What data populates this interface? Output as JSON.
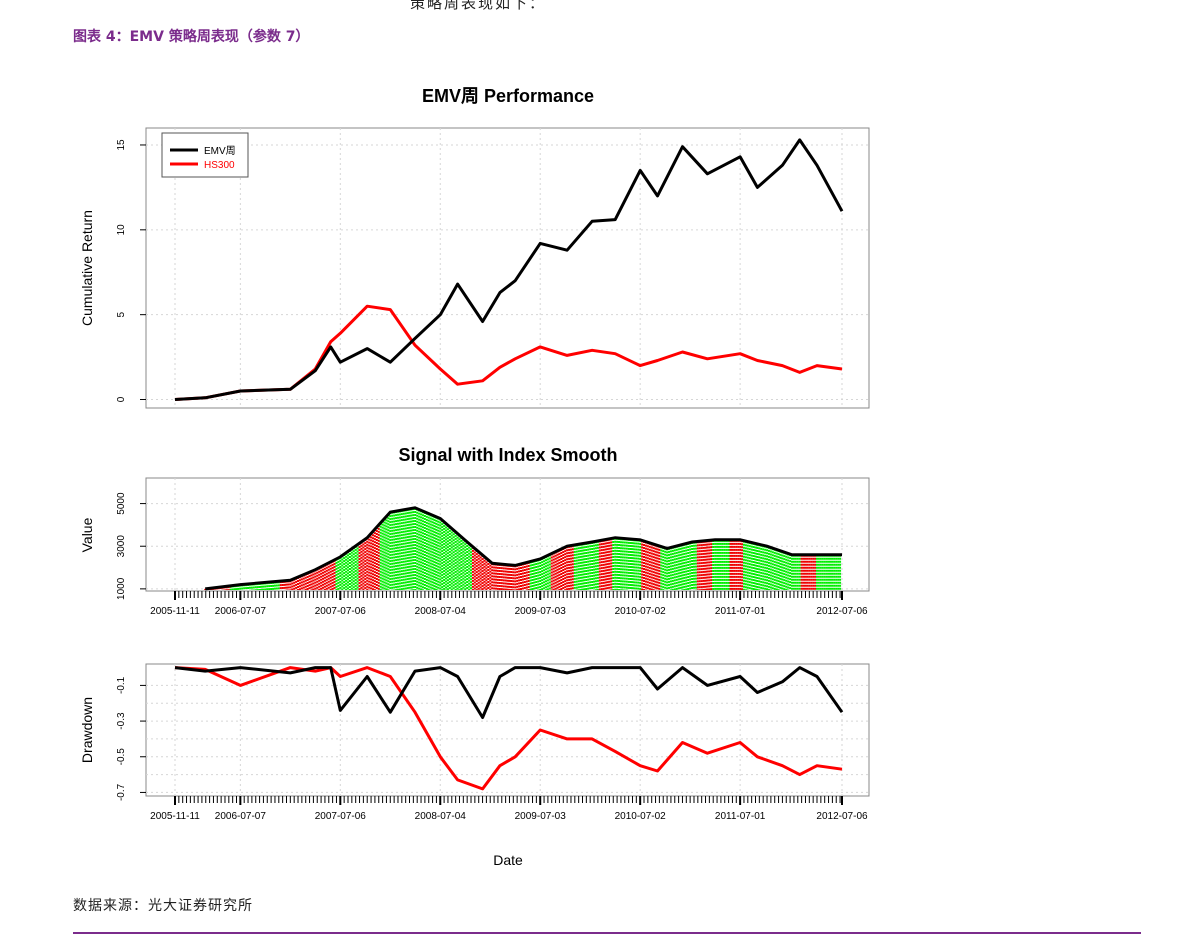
{
  "report": {
    "top_text": "策略周表现如下：",
    "figure_caption": "图表 4：EMV 策略周表现（参数 7）",
    "source": "数据来源：光大证券研究所"
  },
  "colors": {
    "strategy": "#000000",
    "index": "#ff0000",
    "long": "#00ee00",
    "short": "#ee0000",
    "caption": "#7b2c8c"
  },
  "chart_data": [
    {
      "type": "line",
      "title": "EMV周 Performance",
      "ylabel": "Cumulative Return",
      "ylim": [
        -0.5,
        16
      ],
      "yticks": [
        0,
        5,
        10,
        15
      ],
      "grid": true,
      "legend_placement": "top-left",
      "x_range": [
        "2005-11-11",
        "2012-07-06"
      ],
      "series": [
        {
          "name": "EMV周",
          "color": "#000000",
          "x": [
            "2005-11-11",
            "2006-03-01",
            "2006-07-07",
            "2007-01-05",
            "2007-04-06",
            "2007-06-01",
            "2007-07-06",
            "2007-10-12",
            "2008-01-04",
            "2008-04-03",
            "2008-07-04",
            "2008-09-05",
            "2008-12-05",
            "2009-02-06",
            "2009-04-03",
            "2009-07-03",
            "2009-10-09",
            "2010-01-08",
            "2010-04-02",
            "2010-07-02",
            "2010-09-03",
            "2010-12-03",
            "2011-03-04",
            "2011-07-01",
            "2011-09-02",
            "2011-12-02",
            "2012-02-03",
            "2012-04-06",
            "2012-07-06"
          ],
          "y": [
            0.0,
            0.1,
            0.5,
            0.6,
            1.7,
            3.1,
            2.2,
            3.0,
            2.2,
            3.6,
            5.0,
            6.8,
            4.6,
            6.3,
            7.0,
            9.2,
            8.8,
            10.5,
            10.6,
            13.5,
            12.0,
            14.9,
            13.3,
            14.3,
            12.5,
            13.8,
            15.3,
            13.8,
            11.1
          ]
        },
        {
          "name": "HS300",
          "color": "#ff0000",
          "x": [
            "2005-11-11",
            "2006-03-01",
            "2006-07-07",
            "2007-01-05",
            "2007-04-06",
            "2007-06-01",
            "2007-07-06",
            "2007-10-12",
            "2008-01-04",
            "2008-04-03",
            "2008-07-04",
            "2008-09-05",
            "2008-12-05",
            "2009-02-06",
            "2009-04-03",
            "2009-07-03",
            "2009-10-09",
            "2010-01-08",
            "2010-04-02",
            "2010-07-02",
            "2010-09-03",
            "2010-12-03",
            "2011-03-04",
            "2011-07-01",
            "2011-09-02",
            "2011-12-02",
            "2012-02-03",
            "2012-04-06",
            "2012-07-06"
          ],
          "y": [
            0.0,
            0.1,
            0.5,
            0.6,
            1.8,
            3.4,
            3.9,
            5.5,
            5.3,
            3.2,
            1.8,
            0.9,
            1.1,
            1.9,
            2.4,
            3.1,
            2.6,
            2.9,
            2.7,
            2.0,
            2.3,
            2.8,
            2.4,
            2.7,
            2.3,
            2.0,
            1.6,
            2.0,
            1.8
          ]
        }
      ]
    },
    {
      "type": "area",
      "title": "Signal with Index Smooth",
      "ylabel": "Value",
      "ylim": [
        900,
        6200
      ],
      "yticks": [
        1000,
        3000,
        5000
      ],
      "grid": true,
      "x_range": [
        "2005-11-11",
        "2012-07-06"
      ],
      "x_tick_labels": [
        "2005-11-11",
        "2006-07-07",
        "2007-07-06",
        "2008-07-04",
        "2009-07-03",
        "2010-07-02",
        "2011-07-01",
        "2012-07-06"
      ],
      "smooth_index": {
        "x": [
          "2006-03-01",
          "2006-07-07",
          "2007-01-05",
          "2007-04-06",
          "2007-07-06",
          "2007-10-12",
          "2008-01-04",
          "2008-04-03",
          "2008-07-04",
          "2008-10-10",
          "2009-01-09",
          "2009-04-03",
          "2009-07-03",
          "2009-10-09",
          "2010-01-08",
          "2010-04-02",
          "2010-07-02",
          "2010-10-08",
          "2011-01-07",
          "2011-04-01",
          "2011-07-01",
          "2011-10-07",
          "2012-01-06",
          "2012-04-06",
          "2012-07-06"
        ],
        "y": [
          1000,
          1200,
          1400,
          1900,
          2500,
          3400,
          4600,
          4800,
          4300,
          3200,
          2200,
          2100,
          2400,
          3000,
          3200,
          3400,
          3300,
          2900,
          3200,
          3300,
          3300,
          3000,
          2600,
          2600,
          2600
        ]
      },
      "signal_periods": [
        {
          "start": "2006-03-01",
          "end": "2006-06-02",
          "signal": "short"
        },
        {
          "start": "2006-06-02",
          "end": "2006-12-01",
          "signal": "long"
        },
        {
          "start": "2006-12-01",
          "end": "2007-06-22",
          "signal": "short"
        },
        {
          "start": "2007-06-22",
          "end": "2007-09-14",
          "signal": "long"
        },
        {
          "start": "2007-09-14",
          "end": "2007-11-30",
          "signal": "short"
        },
        {
          "start": "2007-11-30",
          "end": "2008-10-31",
          "signal": "long"
        },
        {
          "start": "2008-10-31",
          "end": "2009-05-29",
          "signal": "short"
        },
        {
          "start": "2009-05-29",
          "end": "2009-08-14",
          "signal": "long"
        },
        {
          "start": "2009-08-14",
          "end": "2009-11-06",
          "signal": "short"
        },
        {
          "start": "2009-11-06",
          "end": "2010-02-05",
          "signal": "long"
        },
        {
          "start": "2010-02-05",
          "end": "2010-03-26",
          "signal": "short"
        },
        {
          "start": "2010-03-26",
          "end": "2010-07-09",
          "signal": "long"
        },
        {
          "start": "2010-07-09",
          "end": "2010-09-17",
          "signal": "short"
        },
        {
          "start": "2010-09-17",
          "end": "2011-01-28",
          "signal": "long"
        },
        {
          "start": "2011-01-28",
          "end": "2011-03-25",
          "signal": "short"
        },
        {
          "start": "2011-03-25",
          "end": "2011-05-27",
          "signal": "long"
        },
        {
          "start": "2011-05-27",
          "end": "2011-07-15",
          "signal": "short"
        },
        {
          "start": "2011-07-15",
          "end": "2012-02-10",
          "signal": "long"
        },
        {
          "start": "2012-02-10",
          "end": "2012-04-06",
          "signal": "short"
        },
        {
          "start": "2012-04-06",
          "end": "2012-07-06",
          "signal": "long"
        }
      ]
    },
    {
      "type": "line",
      "ylabel": "Drawdown",
      "xlabel": "Date",
      "ylim": [
        -0.72,
        0.02
      ],
      "yticks": [
        -0.1,
        -0.3,
        -0.5,
        -0.7
      ],
      "grid": true,
      "x_range": [
        "2005-11-11",
        "2012-07-06"
      ],
      "x_tick_labels": [
        "2005-11-11",
        "2006-07-07",
        "2007-07-06",
        "2008-07-04",
        "2009-07-03",
        "2010-07-02",
        "2011-07-01",
        "2012-07-06"
      ],
      "series": [
        {
          "name": "EMV周",
          "color": "#000000",
          "x": [
            "2005-11-11",
            "2006-03-01",
            "2006-07-07",
            "2007-01-05",
            "2007-04-06",
            "2007-06-01",
            "2007-07-06",
            "2007-10-12",
            "2008-01-04",
            "2008-04-03",
            "2008-07-04",
            "2008-09-05",
            "2008-12-05",
            "2009-02-06",
            "2009-04-03",
            "2009-07-03",
            "2009-10-09",
            "2010-01-08",
            "2010-04-02",
            "2010-07-02",
            "2010-09-03",
            "2010-12-03",
            "2011-03-04",
            "2011-07-01",
            "2011-09-02",
            "2011-12-02",
            "2012-02-03",
            "2012-04-06",
            "2012-07-06"
          ],
          "y": [
            0.0,
            -0.02,
            0.0,
            -0.03,
            0.0,
            0.0,
            -0.24,
            -0.05,
            -0.25,
            -0.02,
            0.0,
            -0.05,
            -0.28,
            -0.05,
            0.0,
            0.0,
            -0.03,
            0.0,
            0.0,
            0.0,
            -0.12,
            0.0,
            -0.1,
            -0.05,
            -0.14,
            -0.08,
            0.0,
            -0.05,
            -0.25
          ]
        },
        {
          "name": "HS300",
          "color": "#ff0000",
          "x": [
            "2005-11-11",
            "2006-03-01",
            "2006-07-07",
            "2007-01-05",
            "2007-04-06",
            "2007-06-01",
            "2007-07-06",
            "2007-10-12",
            "2008-01-04",
            "2008-04-03",
            "2008-07-04",
            "2008-09-05",
            "2008-12-05",
            "2009-02-06",
            "2009-04-03",
            "2009-07-03",
            "2009-10-09",
            "2010-01-08",
            "2010-04-02",
            "2010-07-02",
            "2010-09-03",
            "2010-12-03",
            "2011-03-04",
            "2011-07-01",
            "2011-09-02",
            "2011-12-02",
            "2012-02-03",
            "2012-04-06",
            "2012-07-06"
          ],
          "y": [
            0.0,
            -0.01,
            -0.1,
            0.0,
            -0.02,
            0.0,
            -0.05,
            0.0,
            -0.05,
            -0.25,
            -0.5,
            -0.63,
            -0.68,
            -0.55,
            -0.5,
            -0.35,
            -0.4,
            -0.4,
            -0.47,
            -0.55,
            -0.58,
            -0.42,
            -0.48,
            -0.42,
            -0.5,
            -0.55,
            -0.6,
            -0.55,
            -0.57
          ]
        }
      ]
    }
  ]
}
